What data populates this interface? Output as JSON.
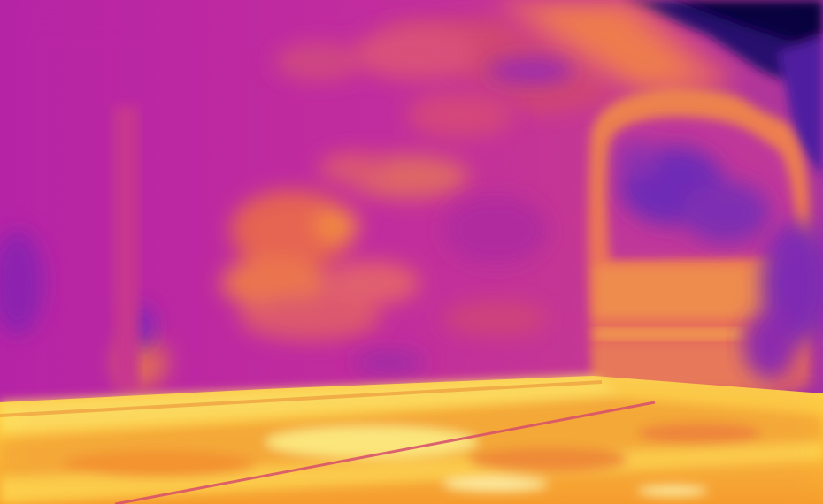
{
  "image": {
    "kind": "thermal-camera-frame",
    "palette": {
      "cold": "#0a0a5a",
      "cool": "#6a2fb5",
      "mid": "#c02aa8",
      "warm": "#e8507a",
      "hot": "#f59a2a",
      "hottest": "#fff06a"
    }
  }
}
